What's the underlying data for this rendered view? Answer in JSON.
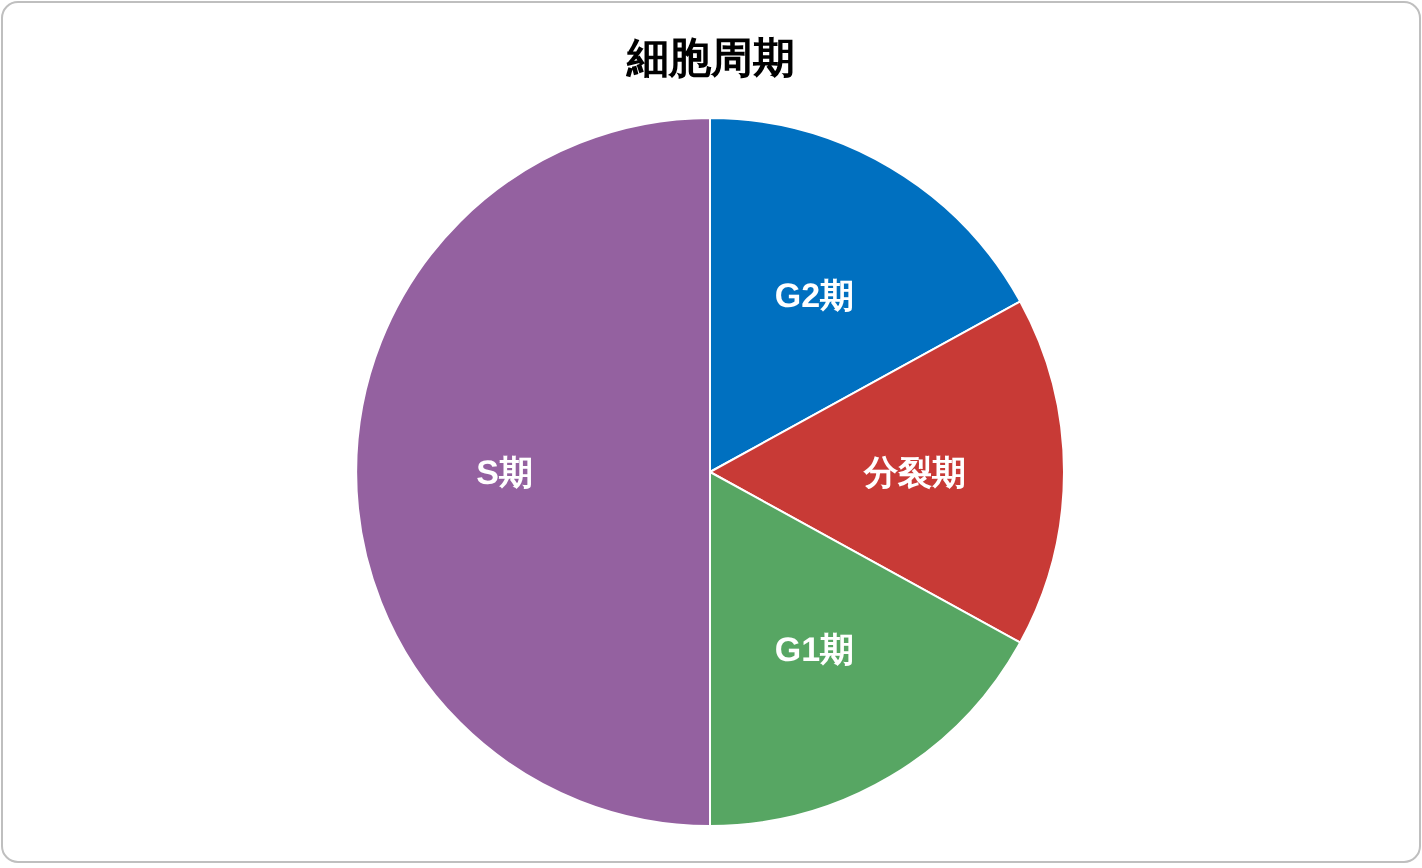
{
  "chart_data": {
    "type": "pie",
    "title": "細胞周期",
    "categories": [
      "G2期",
      "分裂期",
      "G1期",
      "S期"
    ],
    "values": [
      17,
      16,
      17,
      50
    ],
    "colors": [
      "#0070c0",
      "#c83a36",
      "#57a663",
      "#9461a0"
    ]
  }
}
